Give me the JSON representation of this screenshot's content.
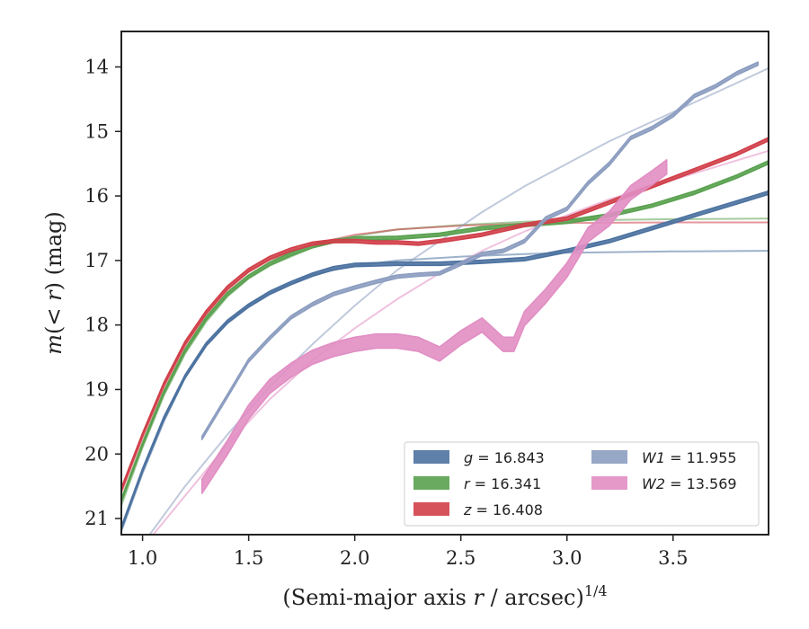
{
  "chart_data": {
    "type": "line",
    "xlabel": "(Semi-major axis r / arcsec)^{1/4}",
    "xlabel_parts": {
      "main": "(Semi-major axis ",
      "var": "r",
      "rest": " / arcsec)",
      "exp": "1/4"
    },
    "ylabel": "m(< r) (mag)",
    "ylabel_parts": {
      "var": "m",
      "open": "(",
      "lt": "< ",
      "rvar": "r",
      "close": ") (mag)"
    },
    "xlim": [
      0.9,
      3.95
    ],
    "ylim": [
      21.25,
      13.45
    ],
    "y_inverted": true,
    "xticks": [
      1.0,
      1.5,
      2.0,
      2.5,
      3.0,
      3.5
    ],
    "xtick_labels": [
      "1.0",
      "1.5",
      "2.0",
      "2.5",
      "3.0",
      "3.5"
    ],
    "yticks": [
      14,
      15,
      16,
      17,
      18,
      19,
      20,
      21
    ],
    "ytick_labels": [
      "14",
      "15",
      "16",
      "17",
      "18",
      "19",
      "20",
      "21"
    ],
    "grid": false,
    "legend_position": "bottom-right",
    "legend_columns": 2,
    "series": [
      {
        "name": "g = 16.843",
        "band": "g",
        "value": "16.843",
        "color": "#4c72a0",
        "band_width": 0.05,
        "data": [
          [
            0.9,
            21.15
          ],
          [
            1.0,
            20.25
          ],
          [
            1.1,
            19.45
          ],
          [
            1.2,
            18.8
          ],
          [
            1.3,
            18.3
          ],
          [
            1.4,
            17.95
          ],
          [
            1.5,
            17.7
          ],
          [
            1.6,
            17.5
          ],
          [
            1.7,
            17.35
          ],
          [
            1.8,
            17.22
          ],
          [
            1.9,
            17.12
          ],
          [
            2.0,
            17.07
          ],
          [
            2.2,
            17.05
          ],
          [
            2.4,
            17.05
          ],
          [
            2.6,
            17.02
          ],
          [
            2.8,
            16.98
          ],
          [
            3.0,
            16.85
          ],
          [
            3.2,
            16.7
          ],
          [
            3.4,
            16.5
          ],
          [
            3.6,
            16.3
          ],
          [
            3.8,
            16.1
          ],
          [
            3.95,
            15.95
          ]
        ],
        "model": [
          [
            0.9,
            21.2
          ],
          [
            1.0,
            20.3
          ],
          [
            1.1,
            19.5
          ],
          [
            1.2,
            18.82
          ],
          [
            1.3,
            18.32
          ],
          [
            1.4,
            17.96
          ],
          [
            1.5,
            17.7
          ],
          [
            1.6,
            17.5
          ],
          [
            1.8,
            17.22
          ],
          [
            2.0,
            17.08
          ],
          [
            2.2,
            17.0
          ],
          [
            2.5,
            16.94
          ],
          [
            2.8,
            16.9
          ],
          [
            3.0,
            16.88
          ],
          [
            3.5,
            16.86
          ],
          [
            3.95,
            16.85
          ]
        ]
      },
      {
        "name": "r = 16.341",
        "band": "r",
        "value": "16.341",
        "color": "#59a14f",
        "band_width": 0.05,
        "data": [
          [
            0.9,
            20.72
          ],
          [
            1.0,
            19.85
          ],
          [
            1.1,
            19.05
          ],
          [
            1.2,
            18.4
          ],
          [
            1.3,
            17.9
          ],
          [
            1.4,
            17.52
          ],
          [
            1.5,
            17.25
          ],
          [
            1.6,
            17.05
          ],
          [
            1.7,
            16.9
          ],
          [
            1.8,
            16.78
          ],
          [
            1.9,
            16.7
          ],
          [
            2.0,
            16.66
          ],
          [
            2.2,
            16.65
          ],
          [
            2.4,
            16.6
          ],
          [
            2.6,
            16.5
          ],
          [
            2.8,
            16.45
          ],
          [
            3.0,
            16.4
          ],
          [
            3.2,
            16.3
          ],
          [
            3.4,
            16.15
          ],
          [
            3.6,
            15.95
          ],
          [
            3.8,
            15.7
          ],
          [
            3.95,
            15.48
          ]
        ],
        "model": [
          [
            0.9,
            20.8
          ],
          [
            1.0,
            19.9
          ],
          [
            1.1,
            19.1
          ],
          [
            1.2,
            18.45
          ],
          [
            1.3,
            17.95
          ],
          [
            1.4,
            17.56
          ],
          [
            1.5,
            17.28
          ],
          [
            1.6,
            17.08
          ],
          [
            1.8,
            16.8
          ],
          [
            2.0,
            16.62
          ],
          [
            2.2,
            16.52
          ],
          [
            2.5,
            16.45
          ],
          [
            2.8,
            16.4
          ],
          [
            3.0,
            16.38
          ],
          [
            3.5,
            16.36
          ],
          [
            3.95,
            16.35
          ]
        ]
      },
      {
        "name": "z = 16.408",
        "band": "z",
        "value": "16.408",
        "color": "#d1404a",
        "band_width": 0.05,
        "data": [
          [
            0.9,
            20.55
          ],
          [
            1.0,
            19.7
          ],
          [
            1.1,
            18.92
          ],
          [
            1.2,
            18.28
          ],
          [
            1.3,
            17.8
          ],
          [
            1.4,
            17.42
          ],
          [
            1.5,
            17.15
          ],
          [
            1.6,
            16.96
          ],
          [
            1.7,
            16.83
          ],
          [
            1.8,
            16.74
          ],
          [
            1.9,
            16.7
          ],
          [
            2.0,
            16.7
          ],
          [
            2.1,
            16.72
          ],
          [
            2.2,
            16.72
          ],
          [
            2.3,
            16.74
          ],
          [
            2.4,
            16.7
          ],
          [
            2.6,
            16.6
          ],
          [
            2.8,
            16.45
          ],
          [
            3.0,
            16.35
          ],
          [
            3.2,
            16.1
          ],
          [
            3.4,
            15.85
          ],
          [
            3.6,
            15.6
          ],
          [
            3.8,
            15.35
          ],
          [
            3.95,
            15.12
          ]
        ],
        "model": [
          [
            0.9,
            20.6
          ],
          [
            1.0,
            19.75
          ],
          [
            1.1,
            18.97
          ],
          [
            1.2,
            18.33
          ],
          [
            1.3,
            17.84
          ],
          [
            1.4,
            17.46
          ],
          [
            1.5,
            17.18
          ],
          [
            1.6,
            16.99
          ],
          [
            1.8,
            16.75
          ],
          [
            2.0,
            16.6
          ],
          [
            2.2,
            16.52
          ],
          [
            2.5,
            16.46
          ],
          [
            2.8,
            16.43
          ],
          [
            3.0,
            16.42
          ],
          [
            3.5,
            16.41
          ],
          [
            3.95,
            16.41
          ]
        ]
      },
      {
        "name": "W1 = 11.955",
        "band": "W1",
        "value": "11.955",
        "color": "#8c9dc0",
        "band_width": 0.05,
        "data": [
          [
            1.28,
            19.75
          ],
          [
            1.4,
            19.1
          ],
          [
            1.5,
            18.55
          ],
          [
            1.6,
            18.2
          ],
          [
            1.7,
            17.88
          ],
          [
            1.8,
            17.68
          ],
          [
            1.9,
            17.52
          ],
          [
            2.0,
            17.42
          ],
          [
            2.1,
            17.33
          ],
          [
            2.2,
            17.25
          ],
          [
            2.3,
            17.22
          ],
          [
            2.4,
            17.2
          ],
          [
            2.5,
            17.05
          ],
          [
            2.6,
            16.9
          ],
          [
            2.7,
            16.85
          ],
          [
            2.8,
            16.7
          ],
          [
            2.9,
            16.35
          ],
          [
            3.0,
            16.2
          ],
          [
            3.1,
            15.8
          ],
          [
            3.2,
            15.5
          ],
          [
            3.3,
            15.1
          ],
          [
            3.4,
            14.95
          ],
          [
            3.5,
            14.75
          ],
          [
            3.6,
            14.45
          ],
          [
            3.7,
            14.3
          ],
          [
            3.8,
            14.1
          ],
          [
            3.9,
            13.95
          ]
        ],
        "model": [
          [
            1.0,
            21.4
          ],
          [
            1.2,
            20.5
          ],
          [
            1.4,
            19.7
          ],
          [
            1.6,
            18.95
          ],
          [
            1.8,
            18.3
          ],
          [
            2.0,
            17.7
          ],
          [
            2.2,
            17.15
          ],
          [
            2.4,
            16.7
          ],
          [
            2.6,
            16.25
          ],
          [
            2.8,
            15.85
          ],
          [
            3.0,
            15.5
          ],
          [
            3.2,
            15.15
          ],
          [
            3.4,
            14.85
          ],
          [
            3.6,
            14.55
          ],
          [
            3.8,
            14.25
          ],
          [
            3.95,
            14.02
          ]
        ]
      },
      {
        "name": "W2 = 13.569",
        "band": "W2",
        "value": "13.569",
        "color": "#e18ec3",
        "band_width": 0.22,
        "data": [
          [
            1.28,
            20.5
          ],
          [
            1.4,
            19.9
          ],
          [
            1.5,
            19.35
          ],
          [
            1.6,
            18.95
          ],
          [
            1.7,
            18.7
          ],
          [
            1.8,
            18.5
          ],
          [
            1.9,
            18.38
          ],
          [
            2.0,
            18.3
          ],
          [
            2.1,
            18.25
          ],
          [
            2.2,
            18.25
          ],
          [
            2.3,
            18.3
          ],
          [
            2.4,
            18.45
          ],
          [
            2.5,
            18.2
          ],
          [
            2.6,
            18.0
          ],
          [
            2.7,
            18.3
          ],
          [
            2.75,
            18.3
          ],
          [
            2.8,
            17.9
          ],
          [
            2.9,
            17.55
          ],
          [
            3.0,
            17.15
          ],
          [
            3.1,
            16.6
          ],
          [
            3.2,
            16.35
          ],
          [
            3.3,
            15.95
          ],
          [
            3.4,
            15.72
          ],
          [
            3.47,
            15.55
          ]
        ],
        "model": [
          [
            1.0,
            21.45
          ],
          [
            1.2,
            20.65
          ],
          [
            1.4,
            19.85
          ],
          [
            1.6,
            19.15
          ],
          [
            1.8,
            18.55
          ],
          [
            2.0,
            18.05
          ],
          [
            2.2,
            17.6
          ],
          [
            2.4,
            17.2
          ],
          [
            2.6,
            16.85
          ],
          [
            2.8,
            16.55
          ],
          [
            3.0,
            16.3
          ],
          [
            3.2,
            16.05
          ],
          [
            3.4,
            15.85
          ],
          [
            3.6,
            15.65
          ],
          [
            3.8,
            15.45
          ],
          [
            3.95,
            15.3
          ]
        ]
      }
    ]
  }
}
